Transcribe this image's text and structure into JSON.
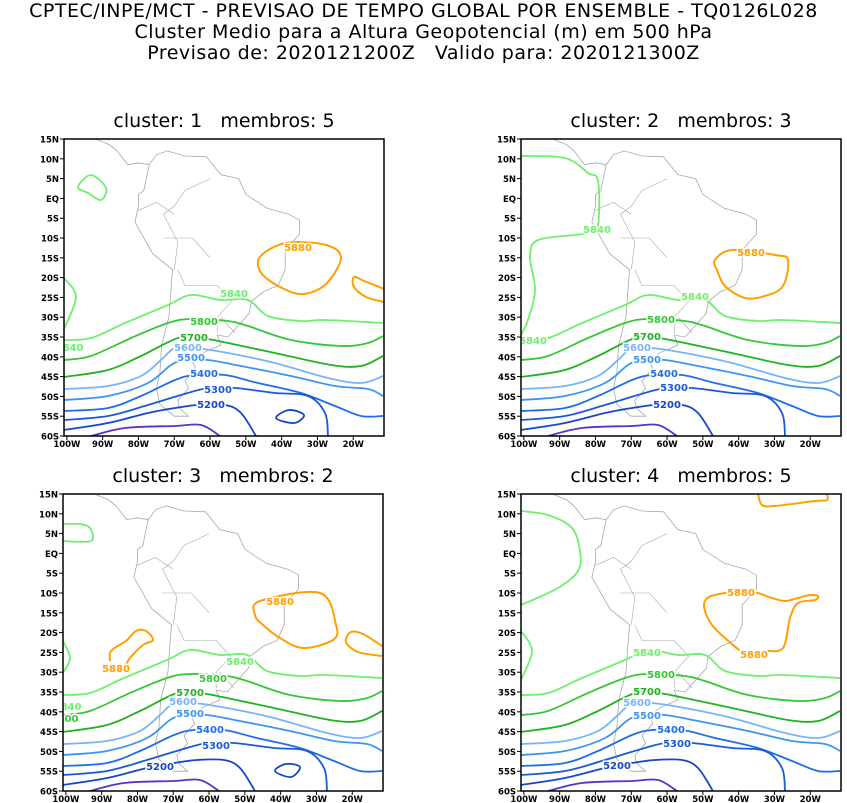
{
  "header": {
    "line1": "CPTEC/INPE/MCT - PREVISAO DE TEMPO GLOBAL POR ENSEMBLE - TQ0126L028",
    "line2": "Cluster Medio para a Altura Geopotencial (m) em 500 hPa",
    "line3": "Previsao de: 2020121200Z   Valido para: 2020121300Z"
  },
  "axes": {
    "lat_labels": [
      "15N",
      "10N",
      "5N",
      "EQ",
      "5S",
      "10S",
      "15S",
      "20S",
      "25S",
      "30S",
      "35S",
      "40S",
      "45S",
      "50S",
      "55S",
      "60S"
    ],
    "lon_labels": [
      "100W",
      "90W",
      "80W",
      "70W",
      "60W",
      "50W",
      "40W",
      "30W",
      "20W"
    ]
  },
  "contour_colors": {
    "5880": "#ffa000",
    "5840": "#6ef06e",
    "5800": "#34c834",
    "5700": "#1eb41e",
    "5600": "#78b4fa",
    "5500": "#3c96f0",
    "5400": "#1e6ee6",
    "5300": "#1a5ad6",
    "5200": "#1846c8",
    "5100": "#5a32c8",
    "coast": "#a8a8a8"
  },
  "panels": [
    {
      "title": "cluster: 1   membros: 5",
      "contour_labels": [
        "5880",
        "5840",
        "840",
        "5800",
        "5700",
        "5600",
        "5500",
        "5400",
        "5300",
        "5200"
      ]
    },
    {
      "title": "cluster: 2   membros: 3",
      "contour_labels": [
        "5880",
        "5840",
        "5840",
        "5840",
        "5800",
        "5700",
        "5600",
        "5500",
        "5400",
        "5300",
        "5200"
      ]
    },
    {
      "title": "cluster: 3   membros: 2",
      "contour_labels": [
        "5880",
        "5880",
        "5840",
        "840",
        "300",
        "5800",
        "5700",
        "5600",
        "5500",
        "5400",
        "5300",
        "5200"
      ]
    },
    {
      "title": "cluster: 4   membros: 5",
      "contour_labels": [
        "5880",
        "5880",
        "5840",
        "5800",
        "5700",
        "5600",
        "5500",
        "5400",
        "5300",
        "5200"
      ]
    }
  ]
}
